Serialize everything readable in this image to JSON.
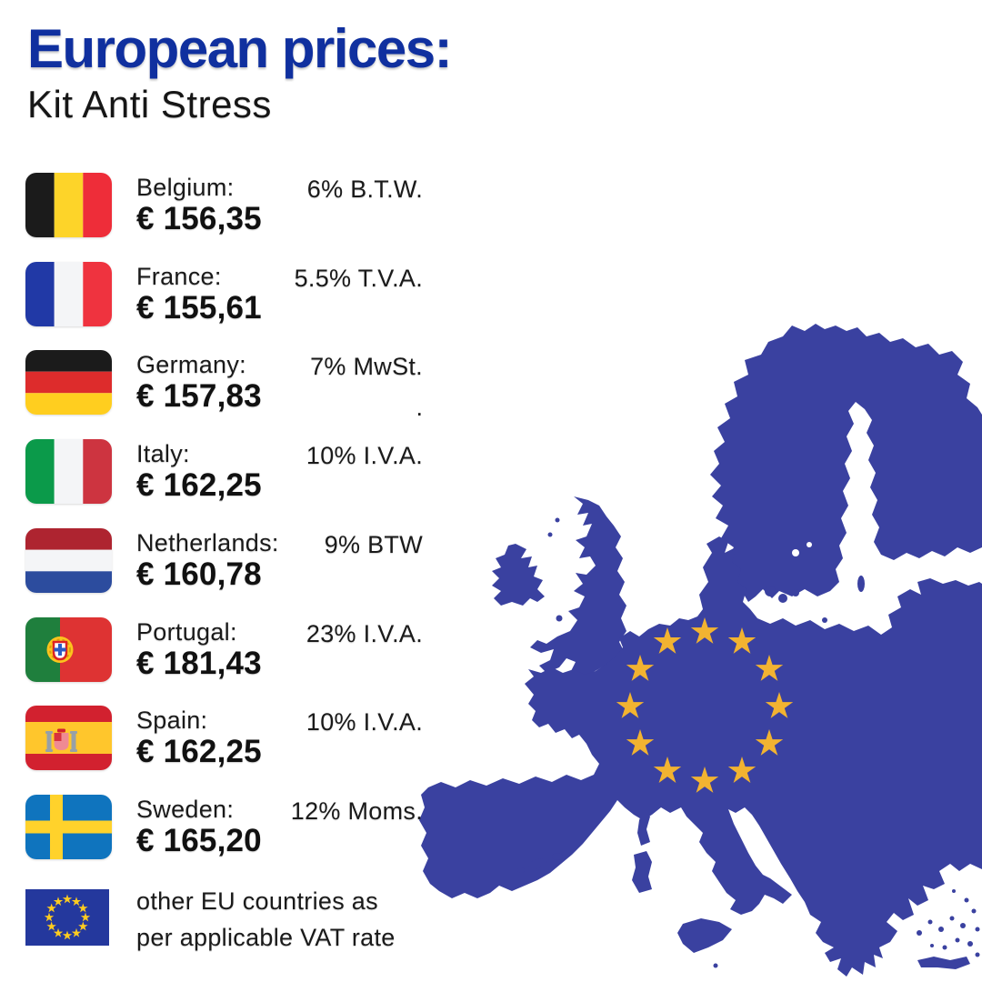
{
  "title": "European prices:",
  "subtitle": "Kit Anti Stress",
  "colors": {
    "title_blue": "#10309f",
    "map_blue": "#3a41a0",
    "star_gold": "#f2b331",
    "eu_flag_blue": "#24389d",
    "eu_star_gold": "#ffcc1f"
  },
  "rows": [
    {
      "country": "Belgium:",
      "price": "€ 156,35",
      "vat": "6% B.T.W.",
      "flag_icon": "belgium-flag-icon"
    },
    {
      "country": "France:",
      "price": "€ 155,61",
      "vat": "5.5% T.V.A.",
      "flag_icon": "france-flag-icon"
    },
    {
      "country": "Germany:",
      "price": "€ 157,83",
      "vat": "7% MwSt.",
      "vat2": ".",
      "flag_icon": "germany-flag-icon"
    },
    {
      "country": "Italy:",
      "price": "€ 162,25",
      "vat": "10% I.V.A.",
      "flag_icon": "italy-flag-icon"
    },
    {
      "country": "Netherlands:",
      "price": "€ 160,78",
      "vat": "9% BTW",
      "flag_icon": "netherlands-flag-icon"
    },
    {
      "country": "Portugal:",
      "price": "€ 181,43",
      "vat": "23% I.V.A.",
      "flag_icon": "portugal-flag-icon"
    },
    {
      "country": "Spain:",
      "price": "€ 162,25",
      "vat": "10% I.V.A.",
      "flag_icon": "spain-flag-icon"
    },
    {
      "country": "Sweden:",
      "price": "€ 165,20",
      "vat": "12% Moms.",
      "flag_icon": "sweden-flag-icon"
    }
  ],
  "footer": {
    "line1": "other EU countries as",
    "line2": "per applicable VAT rate",
    "flag_icon": "eu-flag-icon",
    "star_count": 12
  },
  "map": {
    "name": "europe-map",
    "star_count": 12
  }
}
